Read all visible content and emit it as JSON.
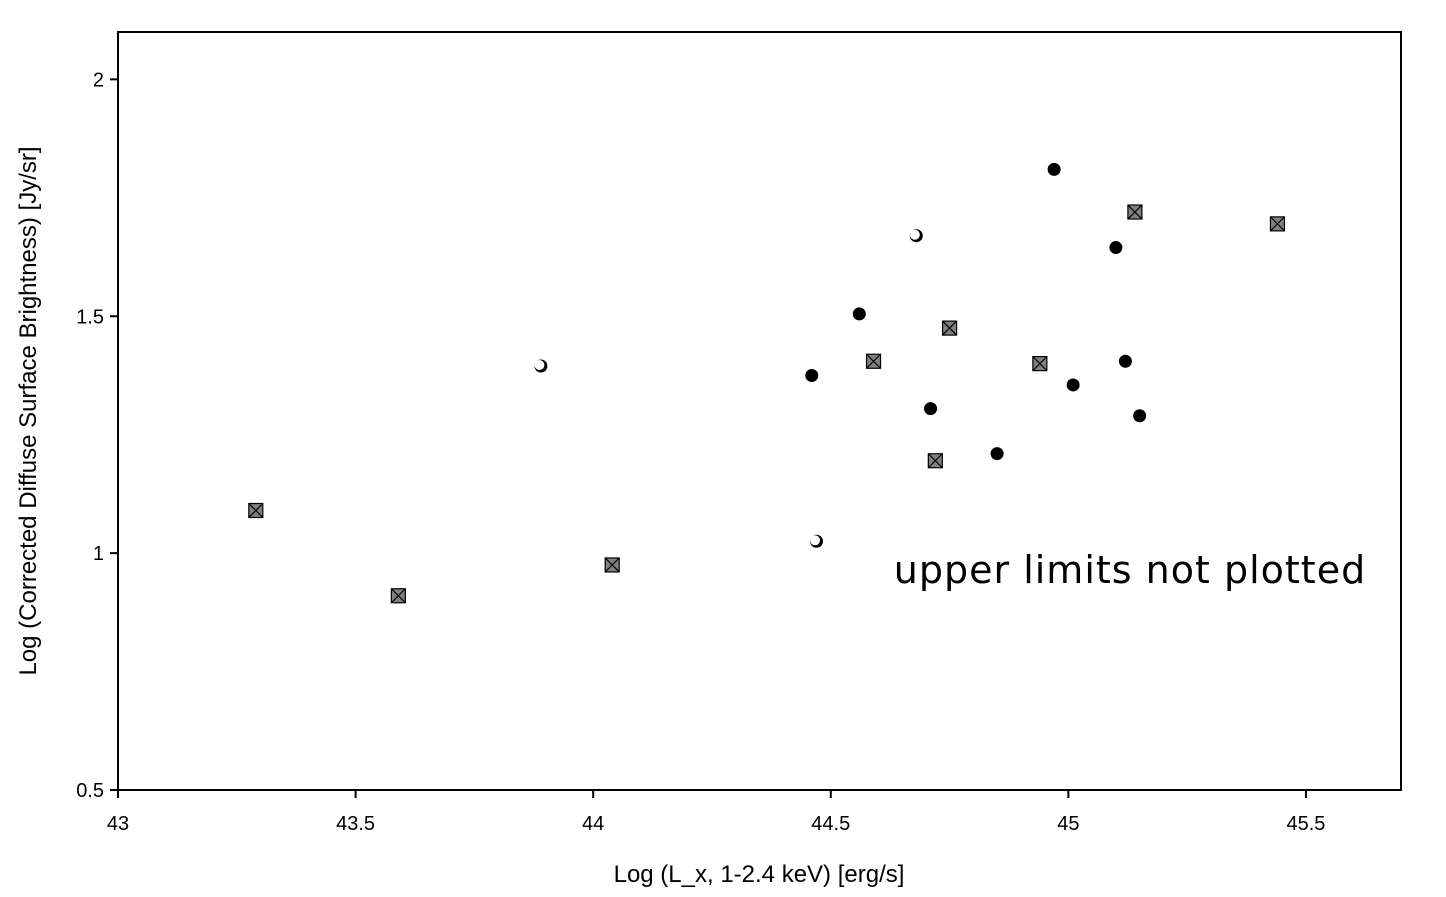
{
  "chart_data": {
    "type": "scatter",
    "xlabel": "Log (L_x, 1-2.4 keV) [erg/s]",
    "ylabel": "Log (Corrected Diffuse Surface Brightness) [Jy/sr]",
    "xlim": [
      43,
      45.7
    ],
    "ylim": [
      0.5,
      2.1
    ],
    "x_ticks": [
      43,
      43.5,
      44,
      44.5,
      45,
      45.5
    ],
    "x_tick_labels": [
      "43",
      "43.5",
      "44",
      "44.5",
      "45",
      "45.5"
    ],
    "y_ticks": [
      0.5,
      1,
      1.5,
      2
    ],
    "y_tick_labels": [
      "0.5",
      "1",
      "1.5",
      "2"
    ],
    "grid": false,
    "annotation": "upper limits not plotted",
    "series": [
      {
        "marker": "filled-circle",
        "color": "#000000",
        "points": [
          {
            "x": 44.97,
            "y": 1.81
          },
          {
            "x": 45.1,
            "y": 1.645
          },
          {
            "x": 44.56,
            "y": 1.505
          },
          {
            "x": 44.46,
            "y": 1.375
          },
          {
            "x": 44.71,
            "y": 1.305
          },
          {
            "x": 45.12,
            "y": 1.405
          },
          {
            "x": 45.01,
            "y": 1.355
          },
          {
            "x": 45.15,
            "y": 1.29
          },
          {
            "x": 44.85,
            "y": 1.21
          }
        ]
      },
      {
        "marker": "open-circle",
        "color": "#000000",
        "points": [
          {
            "x": 43.89,
            "y": 1.395
          },
          {
            "x": 44.68,
            "y": 1.67
          },
          {
            "x": 44.47,
            "y": 1.025
          }
        ]
      },
      {
        "marker": "x-square",
        "color": "#808080",
        "points": [
          {
            "x": 43.29,
            "y": 1.09
          },
          {
            "x": 43.59,
            "y": 0.91
          },
          {
            "x": 44.04,
            "y": 0.975
          },
          {
            "x": 44.59,
            "y": 1.405
          },
          {
            "x": 44.75,
            "y": 1.475
          },
          {
            "x": 44.72,
            "y": 1.195
          },
          {
            "x": 44.94,
            "y": 1.4
          },
          {
            "x": 45.14,
            "y": 1.72
          },
          {
            "x": 45.44,
            "y": 1.695
          }
        ]
      }
    ]
  }
}
